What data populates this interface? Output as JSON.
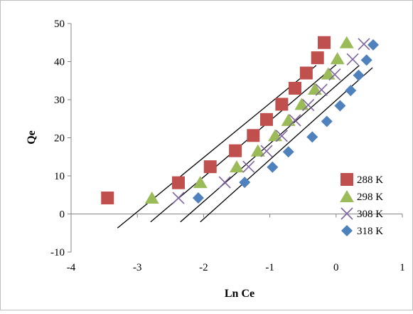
{
  "chart_data": {
    "type": "scatter",
    "title": "",
    "xlabel": "Ln Ce",
    "ylabel": "Qe",
    "xlim": [
      -4,
      1
    ],
    "ylim": [
      -10,
      50
    ],
    "xticks": [
      -4,
      -3,
      -2,
      -1,
      0,
      1
    ],
    "yticks": [
      -10,
      0,
      10,
      20,
      30,
      40,
      50
    ],
    "xtick_labels": [
      "-4",
      "-3",
      "-2",
      "-1",
      "0",
      "1"
    ],
    "ytick_labels": [
      "-10",
      "0",
      "10",
      "20",
      "30",
      "40",
      "50"
    ],
    "grid": false,
    "legend_position": "right",
    "series": [
      {
        "name": "288 K",
        "marker": "square",
        "color": "#C0504D",
        "points": [
          [
            -3.45,
            4.2
          ],
          [
            -2.38,
            8.2
          ],
          [
            -1.9,
            12.4
          ],
          [
            -1.52,
            16.6
          ],
          [
            -1.25,
            20.6
          ],
          [
            -1.05,
            24.8
          ],
          [
            -0.82,
            28.8
          ],
          [
            -0.62,
            33.0
          ],
          [
            -0.45,
            37.0
          ],
          [
            -0.28,
            41.0
          ],
          [
            -0.18,
            45.0
          ]
        ],
        "trendline": [
          [
            -3.3,
            -3.7
          ],
          [
            -0.3,
            39.0
          ]
        ]
      },
      {
        "name": "298 K",
        "marker": "triangle",
        "color": "#9BBB59",
        "points": [
          [
            -2.78,
            4.2
          ],
          [
            -2.05,
            8.3
          ],
          [
            -1.5,
            12.4
          ],
          [
            -1.18,
            16.6
          ],
          [
            -0.92,
            20.6
          ],
          [
            -0.72,
            24.6
          ],
          [
            -0.52,
            28.8
          ],
          [
            -0.32,
            32.8
          ],
          [
            -0.12,
            36.8
          ],
          [
            0.02,
            40.8
          ],
          [
            0.16,
            45.0
          ]
        ],
        "trendline": [
          [
            -2.8,
            -2.1
          ],
          [
            0.0,
            39.2
          ]
        ]
      },
      {
        "name": "308 K",
        "marker": "x",
        "color": "#8064A2",
        "points": [
          [
            -2.38,
            4.2
          ],
          [
            -1.68,
            8.3
          ],
          [
            -1.32,
            12.4
          ],
          [
            -1.05,
            16.5
          ],
          [
            -0.82,
            20.5
          ],
          [
            -0.62,
            24.6
          ],
          [
            -0.42,
            28.6
          ],
          [
            -0.22,
            32.6
          ],
          [
            -0.02,
            36.6
          ],
          [
            0.25,
            40.6
          ],
          [
            0.42,
            44.6
          ]
        ],
        "trendline": [
          [
            -2.35,
            -2.1
          ],
          [
            0.35,
            39.0
          ]
        ]
      },
      {
        "name": "318 K",
        "marker": "diamond",
        "color": "#4F81BD",
        "points": [
          [
            -2.08,
            4.2
          ],
          [
            -1.38,
            8.3
          ],
          [
            -0.96,
            12.3
          ],
          [
            -0.72,
            16.3
          ],
          [
            -0.36,
            20.2
          ],
          [
            -0.14,
            24.3
          ],
          [
            0.06,
            28.4
          ],
          [
            0.22,
            32.4
          ],
          [
            0.34,
            36.4
          ],
          [
            0.46,
            40.4
          ],
          [
            0.56,
            44.4
          ]
        ],
        "trendline": [
          [
            -2.05,
            -2.1
          ],
          [
            0.55,
            38.4
          ]
        ]
      }
    ]
  }
}
